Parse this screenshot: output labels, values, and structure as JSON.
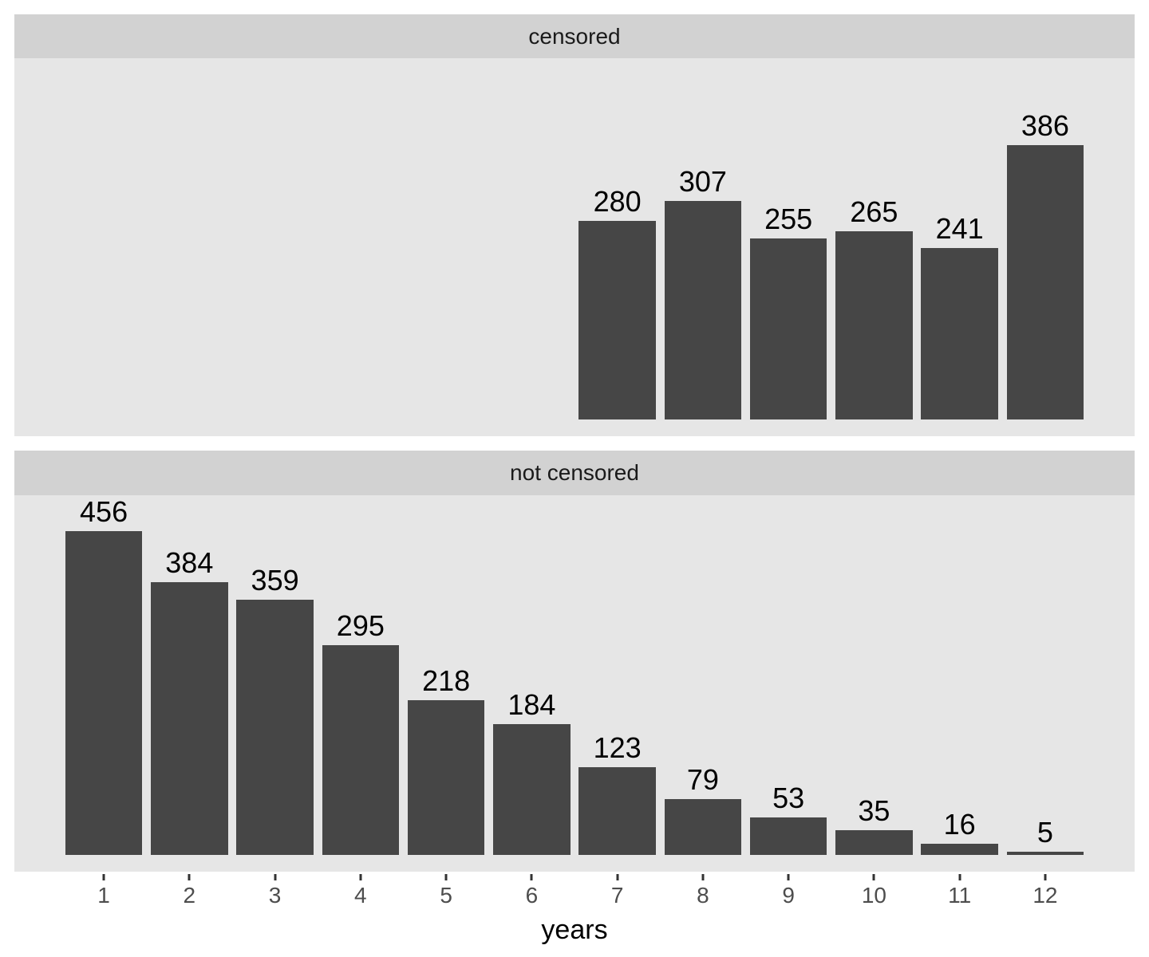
{
  "chart_data": {
    "type": "bar",
    "title": "",
    "xlabel": "years",
    "ylabel": "",
    "facet_layout": "stacked-vertical",
    "facets": [
      {
        "label": "censored",
        "categories": [
          7,
          8,
          9,
          10,
          11,
          12
        ],
        "values": [
          280,
          307,
          255,
          265,
          241,
          386
        ]
      },
      {
        "label": "not censored",
        "categories": [
          1,
          2,
          3,
          4,
          5,
          6,
          7,
          8,
          9,
          10,
          11,
          12
        ],
        "values": [
          456,
          384,
          359,
          295,
          218,
          184,
          123,
          79,
          53,
          35,
          16,
          5
        ]
      }
    ],
    "x_ticks": [
      "1",
      "2",
      "3",
      "4",
      "5",
      "6",
      "7",
      "8",
      "9",
      "10",
      "11",
      "12"
    ],
    "x_domain": [
      1,
      12
    ],
    "ylim": [
      0,
      509
    ],
    "bar_width_fraction": 0.9,
    "bar_labels_shown": true,
    "grid": false,
    "legend": "none",
    "colors": {
      "bar_fill": "#464646",
      "panel_background": "#E6E6E6",
      "strip_background": "#D2D2D2",
      "strip_text": "#1A1A1A",
      "bar_label_text": "#000000",
      "axis_tick": "#333333",
      "axis_text": "#4D4D4D",
      "axis_title_text": "#000000",
      "page_background": "#FFFFFF"
    }
  }
}
